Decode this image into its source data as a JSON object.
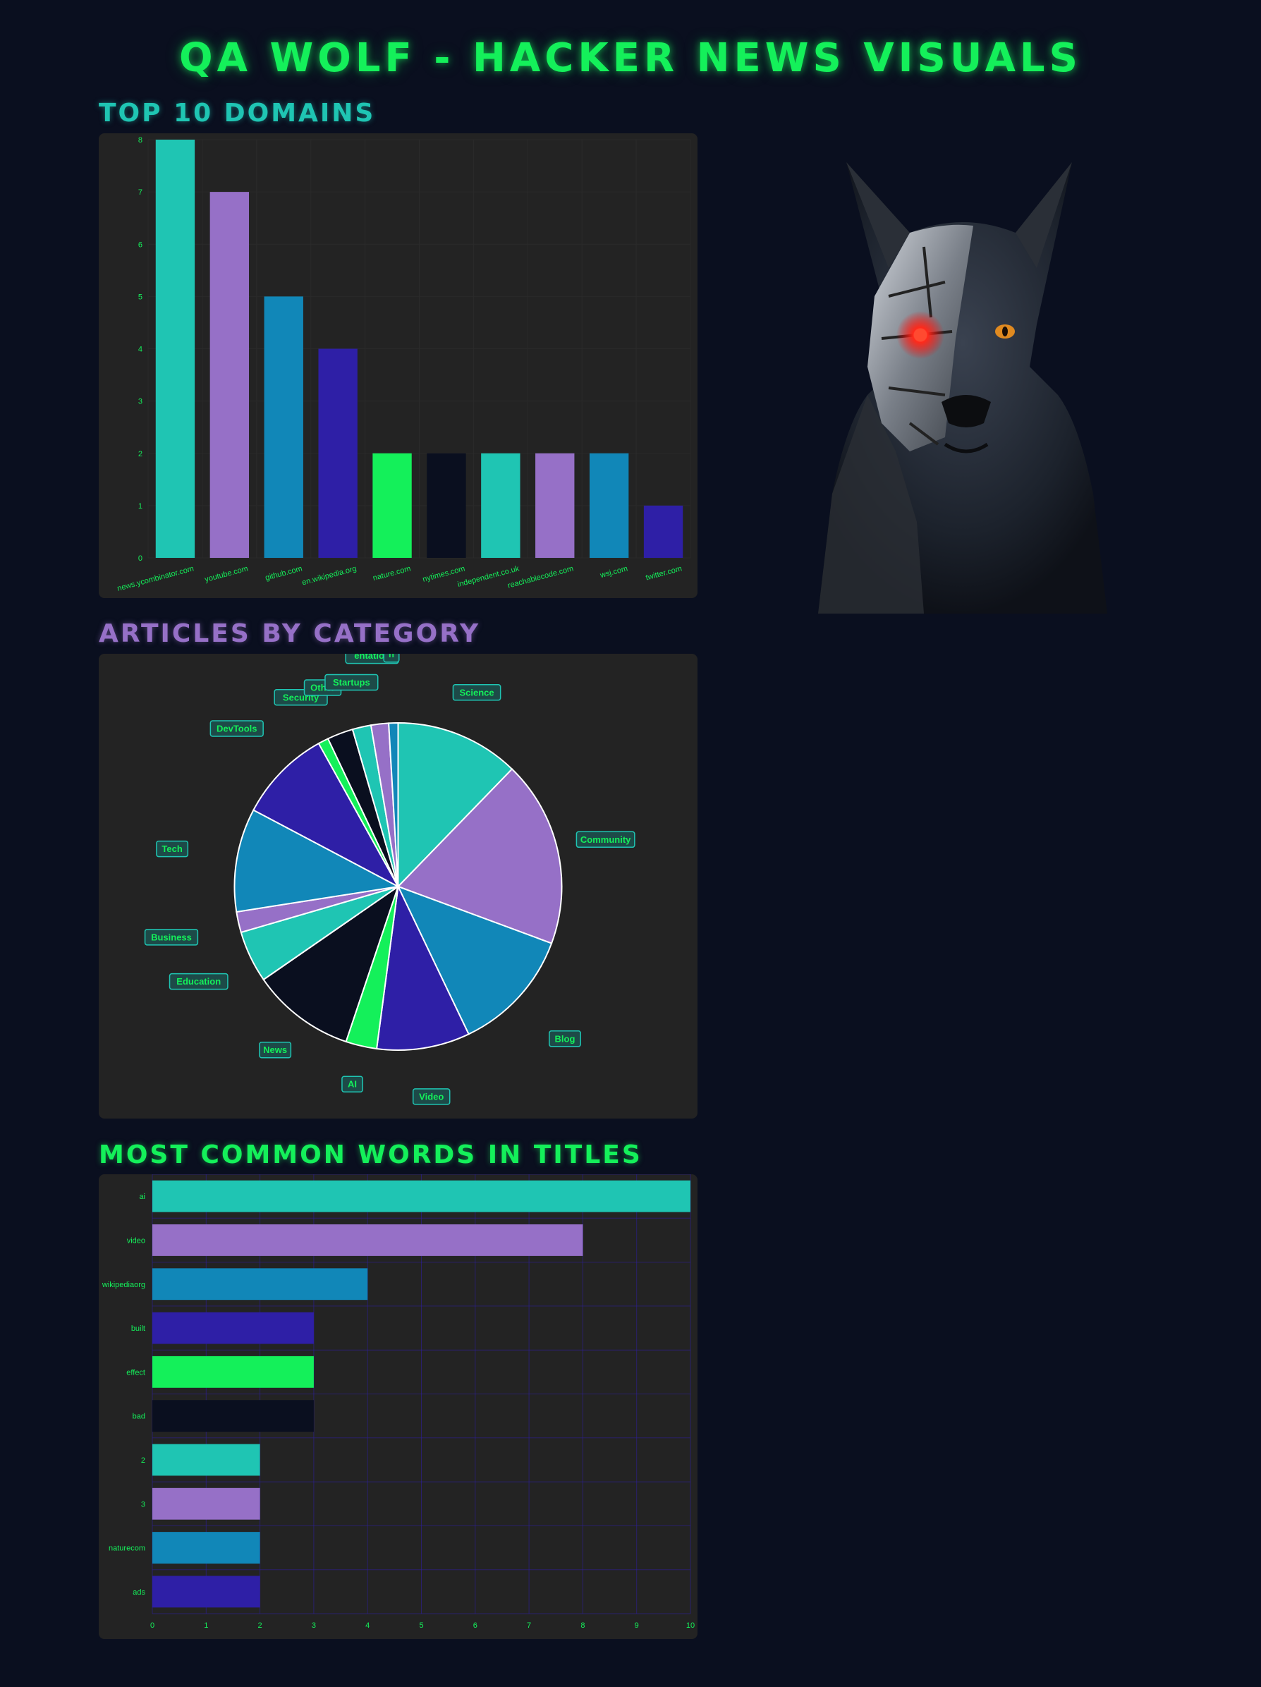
{
  "page": {
    "title": "QA Wolf - Hacker News Visuals"
  },
  "colors": {
    "background": "#0a0f1f",
    "panel": "#232323",
    "tick": "#14f05a",
    "palette": [
      "#1fc5b3",
      "#9670c7",
      "#1187b8",
      "#2e1fa6",
      "#14f05a",
      "#0a0f1f"
    ]
  },
  "sections": {
    "domains_title": "Top 10 Domains",
    "categories_title": "Articles by Category",
    "words_title": "Most Common Words in Titles"
  },
  "decoration": {
    "wolf_icon": "cyborg-wolf-image"
  },
  "chart_data": [
    {
      "type": "bar",
      "title": "Top 10 Domains",
      "categories": [
        "news.ycombinator.com",
        "youtube.com",
        "github.com",
        "en.wikipedia.org",
        "nature.com",
        "nytimes.com",
        "independent.co.uk",
        "reachablecode.com",
        "wsj.com",
        "twitter.com"
      ],
      "values": [
        8,
        7,
        5,
        4,
        2,
        2,
        2,
        2,
        2,
        1
      ],
      "ylim": [
        0,
        8
      ],
      "yticks": [
        "0",
        "1",
        "2",
        "3",
        "4",
        "5",
        "6",
        "7",
        "8"
      ],
      "grid": true
    },
    {
      "type": "pie",
      "title": "Articles by Category",
      "categories": [
        "Science",
        "Community",
        "Blog",
        "Video",
        "AI",
        "News",
        "Education",
        "Business",
        "Tech",
        "DevTools",
        "Security",
        "Other",
        "Startups",
        "Documentation",
        "Research"
      ],
      "labels": [
        "Science",
        "Community",
        "Blog",
        "Video",
        "AI",
        "News",
        "Education",
        "Business",
        "Tech",
        "DevTools",
        "Security",
        "Other",
        "Startups",
        "entation",
        "h"
      ],
      "values": [
        12,
        18,
        12,
        9,
        3,
        10,
        5,
        2,
        10,
        9,
        1,
        2.5,
        1.8,
        1.7,
        0.9
      ]
    },
    {
      "type": "bar",
      "orientation": "horizontal",
      "title": "Most Common Words in Titles",
      "categories": [
        "ai",
        "video",
        "wikipediaorg",
        "built",
        "effect",
        "bad",
        "2",
        "3",
        "naturecom",
        "ads"
      ],
      "values": [
        10,
        8,
        4,
        3,
        3,
        3,
        2,
        2,
        2,
        2
      ],
      "xlim": [
        0,
        10
      ],
      "xticks": [
        "0",
        "1",
        "2",
        "3",
        "4",
        "5",
        "6",
        "7",
        "8",
        "9",
        "10"
      ],
      "grid": true
    }
  ]
}
